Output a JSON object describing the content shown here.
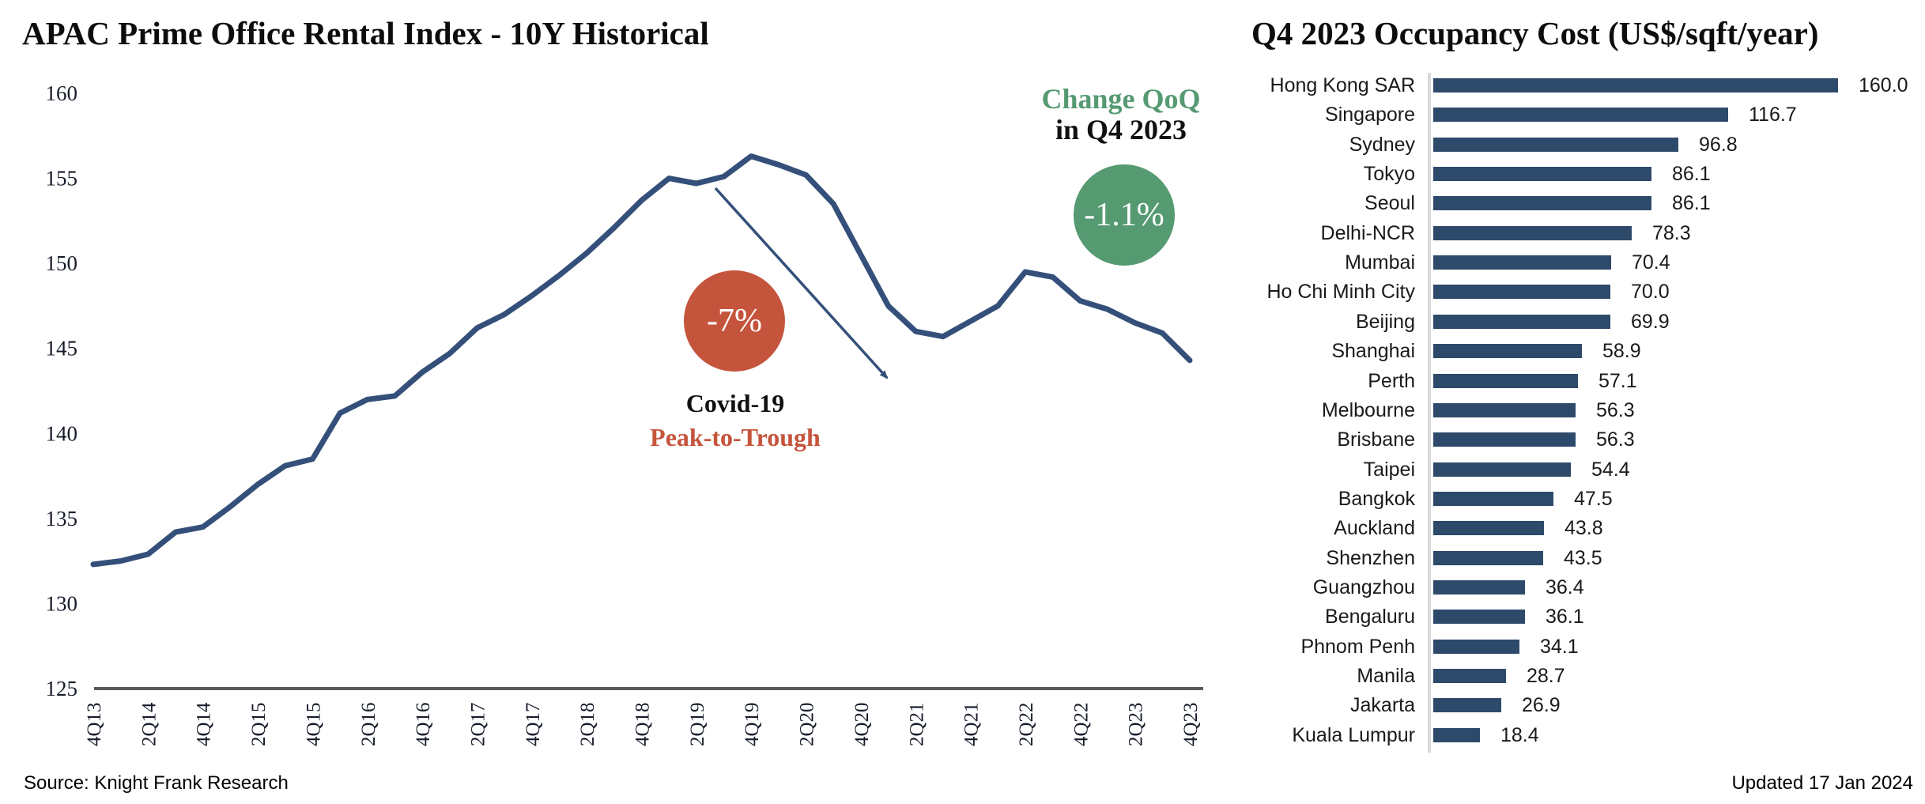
{
  "colors": {
    "line_navy": "#34507A",
    "bar_navy": "#2E4A6B",
    "covid_red": "#C5543C",
    "qoq_green": "#569A72",
    "axis_dark_gray": "#595959",
    "axis_light_gray": "#D9D9D9",
    "tick_text": "#161C2A"
  },
  "chart_data": [
    {
      "type": "line",
      "title": "APAC Prime Office Rental Index - 10Y Historical",
      "x": [
        "4Q13",
        "1Q14",
        "2Q14",
        "3Q14",
        "4Q14",
        "1Q15",
        "2Q15",
        "3Q15",
        "4Q15",
        "1Q16",
        "2Q16",
        "3Q16",
        "4Q16",
        "1Q17",
        "2Q17",
        "3Q17",
        "4Q17",
        "1Q18",
        "2Q18",
        "3Q18",
        "4Q18",
        "1Q19",
        "2Q19",
        "3Q19",
        "4Q19",
        "1Q20",
        "2Q20",
        "3Q20",
        "4Q20",
        "1Q21",
        "2Q21",
        "3Q21",
        "4Q21",
        "1Q22",
        "2Q22",
        "3Q22",
        "4Q22",
        "1Q23",
        "2Q23",
        "3Q23",
        "4Q23"
      ],
      "values": [
        132.3,
        132.5,
        132.9,
        134.2,
        134.5,
        135.7,
        137.0,
        138.1,
        138.5,
        141.2,
        142.0,
        142.2,
        143.6,
        144.7,
        146.2,
        147.0,
        148.1,
        149.3,
        150.6,
        152.1,
        153.7,
        155.0,
        154.7,
        155.1,
        156.3,
        155.8,
        155.2,
        153.5,
        150.5,
        147.5,
        146.0,
        145.7,
        146.6,
        147.5,
        149.5,
        149.2,
        147.8,
        147.3,
        146.5,
        145.9,
        144.3
      ],
      "x_tick_labels": [
        "4Q13",
        "2Q14",
        "4Q14",
        "2Q15",
        "4Q15",
        "2Q16",
        "4Q16",
        "2Q17",
        "4Q17",
        "2Q18",
        "4Q18",
        "2Q19",
        "4Q19",
        "2Q20",
        "4Q20",
        "2Q21",
        "4Q21",
        "2Q22",
        "4Q22",
        "2Q23",
        "4Q23"
      ],
      "y_ticks": [
        160,
        155,
        150,
        145,
        140,
        135,
        130,
        125
      ],
      "ylim": [
        125,
        160
      ],
      "xlabel": "",
      "ylabel": "",
      "grid": false,
      "legend_position": "none",
      "annotations": {
        "covid_pct": "-7%",
        "covid_label": "Covid-19",
        "covid_sublabel": "Peak-to-Trough",
        "qoq_header": "Change QoQ",
        "qoq_subheader": "in Q4 2023",
        "qoq_pct": "-1.1%"
      },
      "source": "Source: Knight Frank Research"
    },
    {
      "type": "bar",
      "orientation": "horizontal",
      "title": "Q4 2023 Occupancy Cost (US$/sqft/year)",
      "categories": [
        "Hong Kong SAR",
        "Singapore",
        "Sydney",
        "Tokyo",
        "Seoul",
        "Delhi-NCR",
        "Mumbai",
        "Ho Chi Minh City",
        "Beijing",
        "Shanghai",
        "Perth",
        "Melbourne",
        "Brisbane",
        "Taipei",
        "Bangkok",
        "Auckland",
        "Shenzhen",
        "Guangzhou",
        "Bengaluru",
        "Phnom Penh",
        "Manila",
        "Jakarta",
        "Kuala Lumpur"
      ],
      "values": [
        160.0,
        116.7,
        96.8,
        86.1,
        86.1,
        78.3,
        70.4,
        70.0,
        69.9,
        58.9,
        57.1,
        56.3,
        56.3,
        54.4,
        47.5,
        43.8,
        43.5,
        36.4,
        36.1,
        34.1,
        28.7,
        26.9,
        18.4
      ],
      "xlim": [
        0,
        170
      ],
      "value_label_decimals": 1,
      "grid": false,
      "updated": "Updated 17 Jan 2024"
    }
  ]
}
